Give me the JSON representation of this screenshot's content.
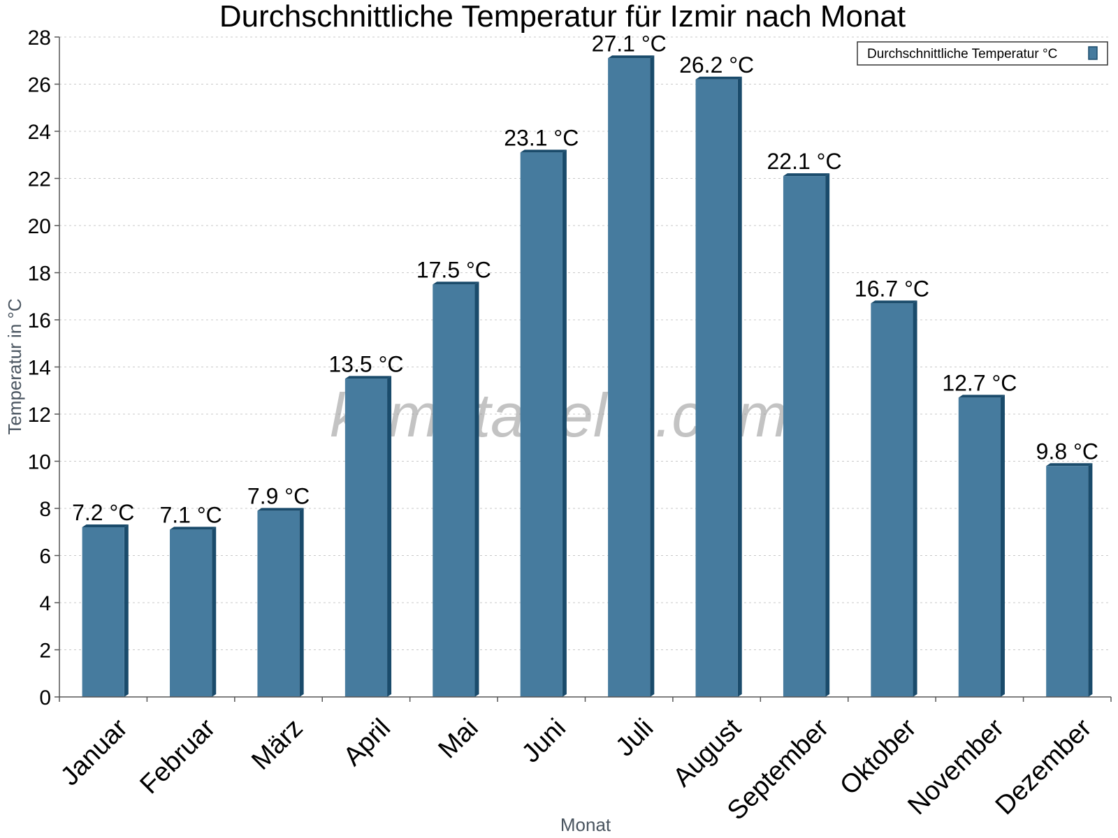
{
  "chart_data": {
    "type": "bar",
    "title": "Durchschnittliche Temperatur für Izmir nach Monat",
    "xlabel": "Monat",
    "ylabel": "Temperatur in °C",
    "categories": [
      "Januar",
      "Februar",
      "März",
      "April",
      "Mai",
      "Juni",
      "Juli",
      "August",
      "September",
      "Oktober",
      "November",
      "Dezember"
    ],
    "series": [
      {
        "name": "Durchschnittliche Temperatur °C",
        "values": [
          7.2,
          7.1,
          7.9,
          13.5,
          17.5,
          23.1,
          27.1,
          26.2,
          22.1,
          16.7,
          12.7,
          9.8
        ],
        "data_labels": [
          "7.2 °C",
          "7.1 °C",
          "7.9 °C",
          "13.5 °C",
          "17.5 °C",
          "23.1 °C",
          "27.1 °C",
          "26.2 °C",
          "22.1 °C",
          "16.7 °C",
          "12.7 °C",
          "9.8 °C"
        ]
      }
    ],
    "ylim": [
      0,
      28
    ],
    "yticks": [
      0,
      2,
      4,
      6,
      8,
      10,
      12,
      14,
      16,
      18,
      20,
      22,
      24,
      26,
      28
    ],
    "grid": true,
    "legend_position": "top-right",
    "colors": {
      "bar": "#467b9e",
      "bar_edge": "#1a4b6b",
      "grid": "#c8c8c8",
      "axis": "#555555"
    }
  },
  "watermark": "klimatabelle.com"
}
